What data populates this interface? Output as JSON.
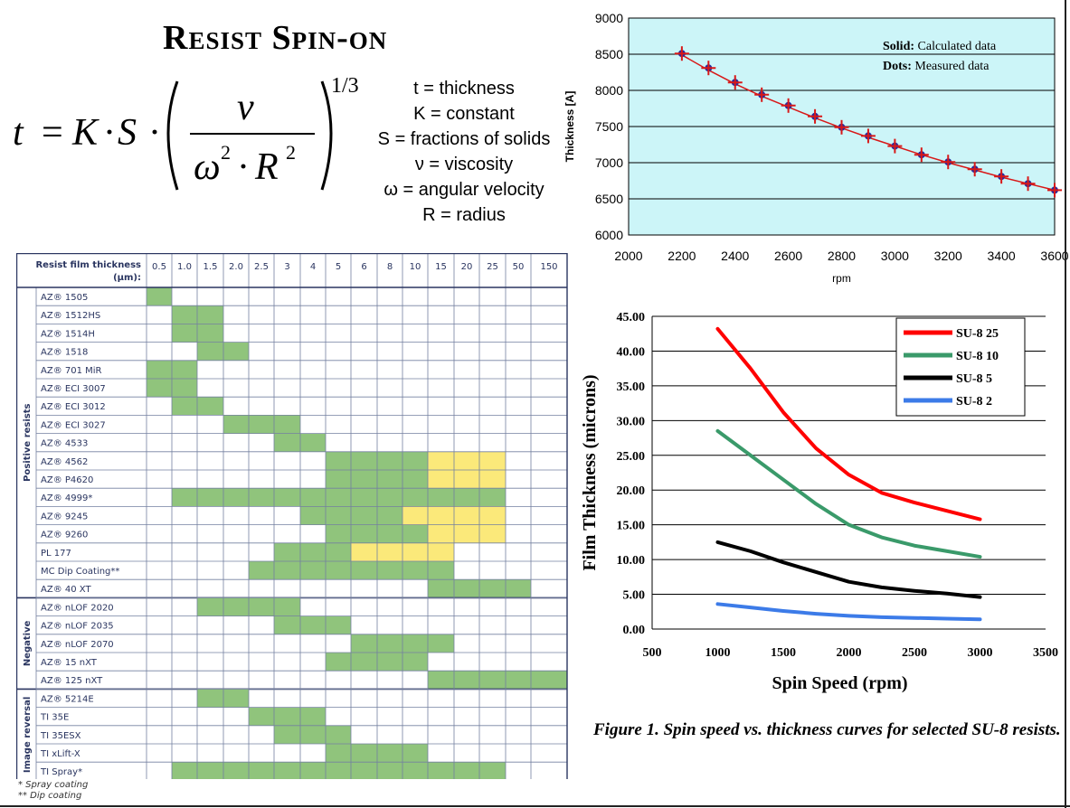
{
  "slide": {
    "title": "Resist Spin-on",
    "formula": {
      "lhs": "t",
      "k": "K",
      "s": "S",
      "nu": "ν",
      "omega": "ω",
      "r": "R",
      "sq": "2",
      "exp": "1/3"
    },
    "variables": [
      "t = thickness",
      "K = constant",
      "S = fractions of solids",
      "ν = viscosity",
      "ω = angular velocity",
      "R = radius"
    ],
    "caption": "Figure 1. Spin speed vs. thickness curves for selected SU-8 resists.",
    "footnotes": [
      "* Spray coating",
      "** Dip coating"
    ]
  },
  "colors": {
    "chart1_bg": "#ccf5f8",
    "calc_line": "#d81818",
    "measured_dots": "#2a2a9a",
    "green": "#90c47c",
    "yellow": "#fbe97a",
    "su8_25": "#ff0000",
    "su8_10": "#3a9a6a",
    "su8_5": "#000000",
    "su8_2": "#3c7be8",
    "table_line": "#7480a0"
  },
  "chart_data": [
    {
      "type": "line",
      "title": "",
      "xlabel": "rpm",
      "ylabel": "Thickness [A]",
      "xlim": [
        2000,
        3600
      ],
      "ylim": [
        6000,
        9000
      ],
      "xticks": [
        2000,
        2200,
        2400,
        2600,
        2800,
        3000,
        3200,
        3400,
        3600
      ],
      "yticks": [
        6000,
        6500,
        7000,
        7500,
        8000,
        8500,
        9000
      ],
      "grid": "horizontal",
      "annotations": [
        {
          "bold": "Solid:",
          "text": "Calculated data"
        },
        {
          "bold": "Dots:",
          "text": "Measured data"
        }
      ],
      "series": [
        {
          "name": "Calculated data",
          "style": "line",
          "x": [
            2200,
            2300,
            2400,
            2500,
            2600,
            2700,
            2800,
            2900,
            3000,
            3100,
            3200,
            3300,
            3400,
            3500,
            3600
          ],
          "y": [
            8490,
            8280,
            8090,
            7920,
            7770,
            7620,
            7480,
            7350,
            7230,
            7110,
            7000,
            6900,
            6800,
            6710,
            6620
          ]
        },
        {
          "name": "Measured data",
          "style": "dots",
          "x": [
            2200,
            2300,
            2400,
            2500,
            2600,
            2700,
            2800,
            2900,
            3000,
            3100,
            3200,
            3300,
            3400,
            3500,
            3600
          ],
          "y": [
            8510,
            8310,
            8110,
            7940,
            7790,
            7640,
            7490,
            7370,
            7230,
            7110,
            7010,
            6910,
            6810,
            6710,
            6620
          ]
        }
      ]
    },
    {
      "type": "line",
      "title": "",
      "xlabel": "Spin Speed (rpm)",
      "ylabel": "Film Thickness (microns)",
      "xlim": [
        500,
        3500
      ],
      "ylim": [
        0,
        45
      ],
      "xticks": [
        500,
        1000,
        1500,
        2000,
        2500,
        3000,
        3500
      ],
      "yticks": [
        "0.00",
        "5.00",
        "10.00",
        "15.00",
        "20.00",
        "25.00",
        "30.00",
        "35.00",
        "40.00",
        "45.00"
      ],
      "grid": "horizontal",
      "legend": "top-right",
      "series": [
        {
          "name": "SU-8 25",
          "color": "#ff0000",
          "x": [
            1000,
            1250,
            1500,
            1750,
            2000,
            2250,
            2500,
            2750,
            3000
          ],
          "y": [
            43.2,
            37.5,
            31.2,
            26.0,
            22.2,
            19.6,
            18.2,
            17.0,
            15.8
          ]
        },
        {
          "name": "SU-8 10",
          "color": "#3a9a6a",
          "x": [
            1000,
            1250,
            1500,
            1750,
            2000,
            2250,
            2500,
            2750,
            3000
          ],
          "y": [
            28.5,
            25.0,
            21.5,
            18.0,
            15.0,
            13.2,
            12.0,
            11.2,
            10.4
          ]
        },
        {
          "name": "SU-8 5",
          "color": "#000000",
          "x": [
            1000,
            1250,
            1500,
            1750,
            2000,
            2250,
            2500,
            2750,
            3000
          ],
          "y": [
            12.5,
            11.2,
            9.6,
            8.2,
            6.8,
            6.0,
            5.5,
            5.1,
            4.6
          ]
        },
        {
          "name": "SU-8 2",
          "color": "#3c7be8",
          "x": [
            1000,
            1250,
            1500,
            1750,
            2000,
            2250,
            2500,
            2750,
            3000
          ],
          "y": [
            3.6,
            3.1,
            2.6,
            2.2,
            1.9,
            1.7,
            1.6,
            1.5,
            1.4
          ]
        }
      ]
    },
    {
      "type": "table",
      "header_label": "Resist film thickness (µm):",
      "columns": [
        "0.5",
        "1.0",
        "1.5",
        "2.0",
        "2.5",
        "3",
        "4",
        "5",
        "6",
        "8",
        "10",
        "15",
        "20",
        "25",
        "50",
        "150"
      ],
      "groups": [
        {
          "name": "Positive resists",
          "rows": [
            {
              "label": "AZ® 1505",
              "green": [
                0
              ],
              "yellow": []
            },
            {
              "label": "AZ® 1512HS",
              "green": [
                1,
                2
              ],
              "yellow": []
            },
            {
              "label": "AZ® 1514H",
              "green": [
                1,
                2
              ],
              "yellow": []
            },
            {
              "label": "AZ® 1518",
              "green": [
                2,
                3
              ],
              "yellow": []
            },
            {
              "label": "AZ® 701 MiR",
              "green": [
                0,
                1
              ],
              "yellow": []
            },
            {
              "label": "AZ® ECI 3007",
              "green": [
                0,
                1
              ],
              "yellow": []
            },
            {
              "label": "AZ® ECI 3012",
              "green": [
                1,
                2
              ],
              "yellow": []
            },
            {
              "label": "AZ® ECI 3027",
              "green": [
                3,
                4,
                5
              ],
              "yellow": []
            },
            {
              "label": "AZ® 4533",
              "green": [
                5,
                6
              ],
              "yellow": []
            },
            {
              "label": "AZ® 4562",
              "green": [
                7,
                8,
                9,
                10
              ],
              "yellow": [
                11,
                12,
                13
              ]
            },
            {
              "label": "AZ® P4620",
              "green": [
                7,
                8,
                9,
                10
              ],
              "yellow": [
                11,
                12,
                13
              ]
            },
            {
              "label": "AZ® 4999*",
              "green": [
                1,
                2,
                3,
                4,
                5,
                6,
                7,
                8,
                9,
                10,
                11,
                12,
                13
              ],
              "yellow": []
            },
            {
              "label": "AZ® 9245",
              "green": [
                6,
                7,
                8,
                9
              ],
              "yellow": [
                10,
                11,
                12,
                13
              ]
            },
            {
              "label": "AZ® 9260",
              "green": [
                7,
                8,
                9,
                10
              ],
              "yellow": [
                11,
                12,
                13
              ]
            },
            {
              "label": "PL 177",
              "green": [
                5,
                6,
                7
              ],
              "yellow": [
                8,
                9,
                10,
                11
              ]
            },
            {
              "label": "MC Dip Coating**",
              "green": [
                4,
                5,
                6,
                7,
                8,
                9,
                10,
                11
              ],
              "yellow": []
            },
            {
              "label": "AZ® 40 XT",
              "green": [
                11,
                12,
                13,
                14
              ],
              "yellow": []
            }
          ]
        },
        {
          "name": "Negative",
          "rows": [
            {
              "label": "AZ® nLOF 2020",
              "green": [
                2,
                3,
                4,
                5
              ],
              "yellow": []
            },
            {
              "label": "AZ® nLOF 2035",
              "green": [
                5,
                6,
                7
              ],
              "yellow": []
            },
            {
              "label": "AZ® nLOF 2070",
              "green": [
                8,
                9,
                10,
                11
              ],
              "yellow": []
            },
            {
              "label": "AZ® 15 nXT",
              "green": [
                7,
                8,
                9,
                10
              ],
              "yellow": []
            },
            {
              "label": "AZ® 125 nXT",
              "green": [
                11,
                12,
                13,
                14,
                15
              ],
              "yellow": []
            }
          ]
        },
        {
          "name": "Image reversal",
          "rows": [
            {
              "label": "AZ® 5214E",
              "green": [
                2,
                3
              ],
              "yellow": []
            },
            {
              "label": "TI 35E",
              "green": [
                4,
                5,
                6
              ],
              "yellow": []
            },
            {
              "label": "TI 35ESX",
              "green": [
                5,
                6,
                7
              ],
              "yellow": []
            },
            {
              "label": "TI xLift-X",
              "green": [
                7,
                8,
                9,
                10
              ],
              "yellow": []
            },
            {
              "label": "TI Spray*",
              "green": [
                1,
                2,
                3,
                4,
                5,
                6,
                7,
                8,
                9,
                10,
                11,
                12,
                13
              ],
              "yellow": []
            }
          ]
        }
      ]
    }
  ]
}
